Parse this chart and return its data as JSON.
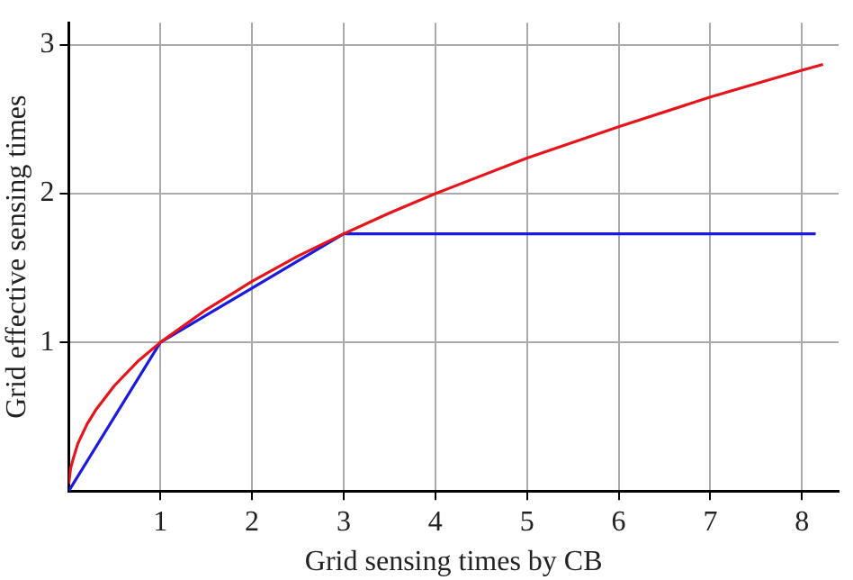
{
  "chart_data": {
    "type": "line",
    "xlabel": "Grid sensing times by CB",
    "ylabel": "Grid effective sensing times",
    "series": [
      {
        "color": "#e8141b",
        "x": [
          0,
          0.02,
          0.05,
          0.1,
          0.2,
          0.3,
          0.5,
          0.75,
          1,
          1.5,
          2,
          2.5,
          3,
          3.5,
          4,
          5,
          6,
          7,
          8,
          8.23
        ],
        "values": [
          0.05,
          0.15,
          0.22,
          0.32,
          0.45,
          0.55,
          0.71,
          0.87,
          1,
          1.22,
          1.41,
          1.58,
          1.73,
          1.87,
          2,
          2.24,
          2.45,
          2.65,
          2.83,
          2.87
        ]
      },
      {
        "color": "#1a1ae0",
        "x": [
          0,
          1,
          3,
          8.15
        ],
        "values": [
          0,
          1,
          1.73,
          1.73
        ]
      }
    ],
    "xlim": [
      0,
      8.4
    ],
    "ylim": [
      0,
      3.15
    ],
    "xticks": [
      1,
      2,
      3,
      4,
      5,
      6,
      7,
      8
    ],
    "yticks": [
      1,
      2,
      3
    ],
    "grid": true,
    "legend": false,
    "marker": "none",
    "line_style": "solid"
  }
}
